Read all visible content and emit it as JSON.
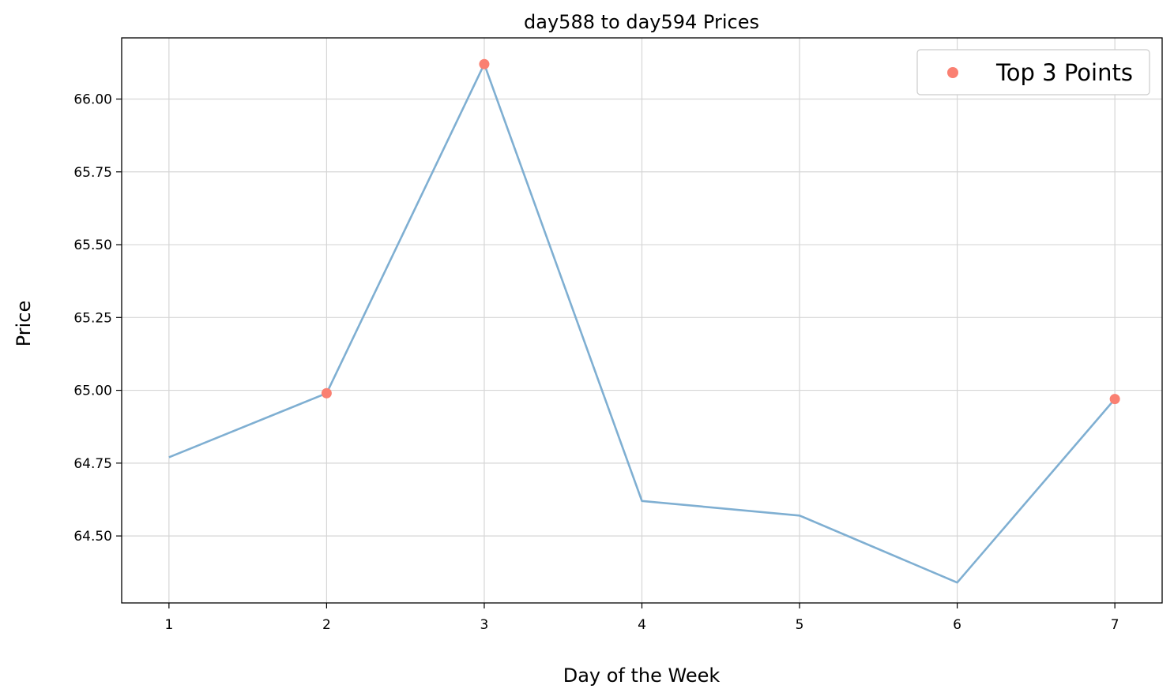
{
  "chart_data": {
    "type": "line",
    "title": "day588 to day594 Prices",
    "xlabel": "Day of the Week",
    "ylabel": "Price",
    "x": [
      1,
      2,
      3,
      4,
      5,
      6,
      7
    ],
    "x_tick_labels": [
      "1",
      "2",
      "3",
      "4",
      "5",
      "6",
      "7"
    ],
    "xlim": [
      0.7,
      7.3
    ],
    "y_ticks": [
      64.5,
      64.75,
      65.0,
      65.25,
      65.5,
      65.75,
      66.0
    ],
    "y_tick_labels": [
      "64.50",
      "64.75",
      "65.00",
      "65.25",
      "65.50",
      "65.75",
      "66.00"
    ],
    "ylim": [
      64.27,
      66.21
    ],
    "grid": true,
    "legend_position": "top-right",
    "series": [
      {
        "values": [
          64.77,
          64.99,
          66.12,
          64.62,
          64.57,
          64.34,
          64.97
        ],
        "color": "#7fafd2",
        "style": "line"
      },
      {
        "name": "Top 3 Points",
        "x": [
          2,
          3,
          7
        ],
        "values": [
          64.99,
          66.12,
          64.97
        ],
        "color": "#fa8072",
        "style": "scatter"
      }
    ]
  }
}
